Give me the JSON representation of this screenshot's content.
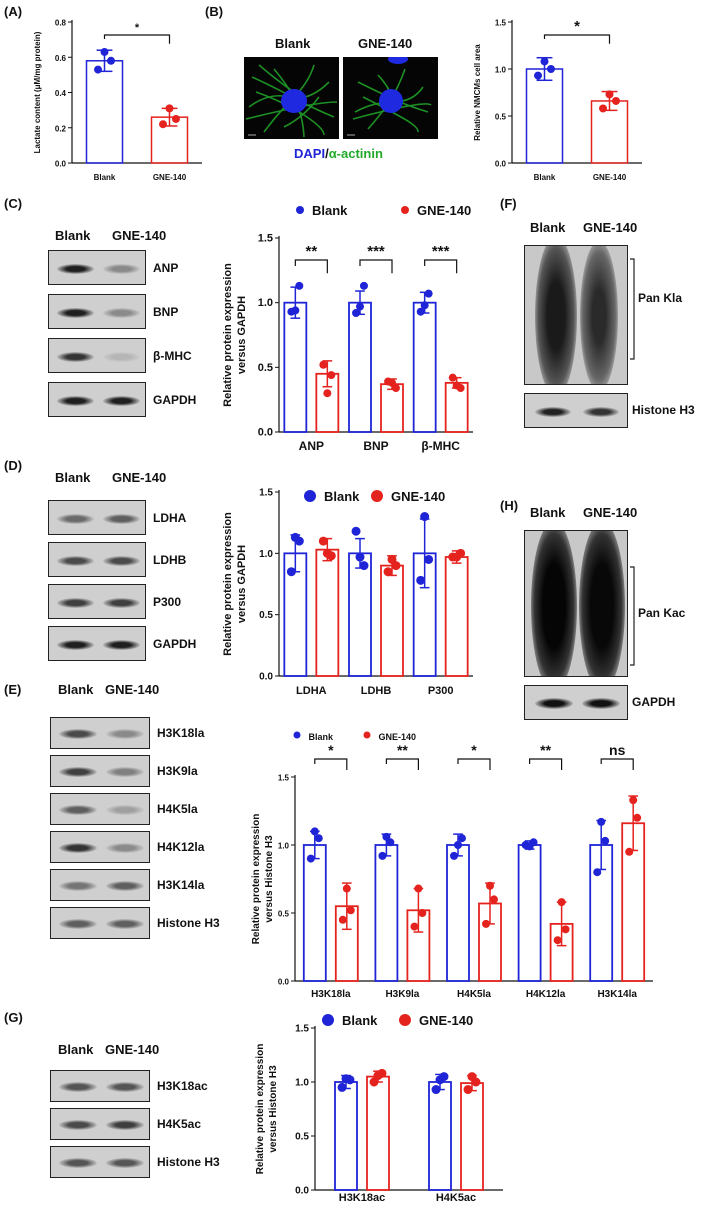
{
  "colors": {
    "blank": "#1f25d6",
    "gne": "#e5231e",
    "dapi": "#1f25d6",
    "actinin": "#22a92a"
  },
  "panelA": {
    "label": "(A)",
    "chart_data": {
      "type": "bar",
      "categories": [
        "Blank",
        "GNE-140"
      ],
      "values": [
        0.58,
        0.26
      ],
      "points": [
        [
          0.53,
          0.58,
          0.63
        ],
        [
          0.22,
          0.25,
          0.31
        ]
      ],
      "errors": [
        0.06,
        0.05
      ],
      "ylabel": "Lactate content (μM/mg protein)",
      "ylim": [
        0,
        0.8
      ],
      "yticks": [
        "0.0",
        "0.2",
        "0.4",
        "0.6",
        "0.8"
      ],
      "significance": "*"
    }
  },
  "panelB": {
    "label": "(B)",
    "img_labels": [
      "Blank",
      "GNE-140"
    ],
    "stain_dapi": "DAPI",
    "stain_sep": "/",
    "stain_actinin": "α-actinin",
    "chart_data": {
      "type": "bar",
      "categories": [
        "Blank",
        "GNE-140"
      ],
      "values": [
        1.0,
        0.66
      ],
      "points": [
        [
          0.93,
          1.0,
          1.08
        ],
        [
          0.58,
          0.66,
          0.73
        ]
      ],
      "errors": [
        0.12,
        0.1
      ],
      "ylabel": "Relative NMCMs cell area",
      "ylim": [
        0,
        1.5
      ],
      "yticks": [
        "0.0",
        "0.5",
        "1.0",
        "1.5"
      ],
      "significance": "*"
    }
  },
  "panelC": {
    "label": "(C)",
    "lanes": [
      "Blank",
      "GNE-140"
    ],
    "blots": [
      "ANP",
      "BNP",
      "β-MHC",
      "GAPDH"
    ],
    "chart_data": {
      "type": "bar",
      "legend": [
        "Blank",
        "GNE-140"
      ],
      "categories": [
        "ANP",
        "BNP",
        "β-MHC"
      ],
      "series": [
        {
          "name": "Blank",
          "values": [
            1.0,
            1.0,
            1.0
          ],
          "errors": [
            0.12,
            0.09,
            0.08
          ],
          "points": [
            [
              0.93,
              1.13,
              0.94
            ],
            [
              0.92,
              1.13,
              0.97
            ],
            [
              0.93,
              1.07,
              0.98
            ]
          ]
        },
        {
          "name": "GNE-140",
          "values": [
            0.45,
            0.37,
            0.38
          ],
          "errors": [
            0.1,
            0.04,
            0.04
          ],
          "points": [
            [
              0.52,
              0.44,
              0.3
            ],
            [
              0.39,
              0.34,
              0.38
            ],
            [
              0.42,
              0.34,
              0.36
            ]
          ]
        }
      ],
      "ylabel": "Relative protein expression versus GAPDH",
      "ylim": [
        0,
        1.5
      ],
      "yticks": [
        "0.0",
        "0.5",
        "1.0",
        "1.5"
      ],
      "significance": [
        "**",
        "***",
        "***"
      ]
    }
  },
  "panelD": {
    "label": "(D)",
    "lanes": [
      "Blank",
      "GNE-140"
    ],
    "blots": [
      "LDHA",
      "LDHB",
      "P300",
      "GAPDH"
    ],
    "chart_data": {
      "type": "bar",
      "legend": [
        "Blank",
        "GNE-140"
      ],
      "categories": [
        "LDHA",
        "LDHB",
        "P300"
      ],
      "series": [
        {
          "name": "Blank",
          "values": [
            1.0,
            1.0,
            1.0
          ],
          "errors": [
            0.15,
            0.12,
            0.28
          ],
          "points": [
            [
              0.85,
              1.1,
              1.13
            ],
            [
              1.18,
              0.9,
              0.97
            ],
            [
              0.78,
              0.95,
              1.3
            ]
          ]
        },
        {
          "name": "GNE-140",
          "values": [
            1.03,
            0.9,
            0.97
          ],
          "errors": [
            0.09,
            0.08,
            0.05
          ],
          "points": [
            [
              1.1,
              0.98,
              1.0
            ],
            [
              0.85,
              0.9,
              0.95
            ],
            [
              0.97,
              1.0,
              0.97
            ]
          ]
        }
      ],
      "ylabel": "Relative protein expression versus GAPDH",
      "ylim": [
        0,
        1.5
      ],
      "yticks": [
        "0.0",
        "0.5",
        "1.0",
        "1.5"
      ]
    }
  },
  "panelE": {
    "label": "(E)",
    "lanes": [
      "Blank",
      "GNE-140"
    ],
    "blots": [
      "H3K18la",
      "H3K9la",
      "H4K5la",
      "H4K12la",
      "H3K14la",
      "Histone H3"
    ],
    "chart_data": {
      "type": "bar",
      "legend": [
        "Blank",
        "GNE-140"
      ],
      "categories": [
        "H3K18la",
        "H3K9la",
        "H4K5la",
        "H4K12la",
        "H3K14la"
      ],
      "series": [
        {
          "name": "Blank",
          "values": [
            1.0,
            1.0,
            1.0,
            1.0,
            1.0
          ],
          "errors": [
            0.1,
            0.08,
            0.08,
            0.03,
            0.18
          ],
          "points": [
            [
              0.9,
              1.05,
              1.1
            ],
            [
              0.92,
              1.02,
              1.06
            ],
            [
              0.92,
              1.05,
              1.0
            ],
            [
              1.0,
              1.02,
              0.99
            ],
            [
              0.8,
              1.03,
              1.17
            ]
          ]
        },
        {
          "name": "GNE-140",
          "values": [
            0.55,
            0.52,
            0.57,
            0.42,
            1.16
          ],
          "errors": [
            0.17,
            0.16,
            0.15,
            0.16,
            0.2
          ],
          "points": [
            [
              0.45,
              0.52,
              0.68
            ],
            [
              0.4,
              0.5,
              0.68
            ],
            [
              0.42,
              0.6,
              0.7
            ],
            [
              0.3,
              0.38,
              0.58
            ],
            [
              0.95,
              1.2,
              1.33
            ]
          ]
        }
      ],
      "ylabel": "Relative protein expression versus Histone H3",
      "ylim": [
        0,
        1.5
      ],
      "yticks": [
        "0.0",
        "0.5",
        "1.0",
        "1.5"
      ],
      "significance": [
        "*",
        "**",
        "*",
        "**",
        "ns"
      ]
    }
  },
  "panelF": {
    "label": "(F)",
    "lanes": [
      "Blank",
      "GNE-140"
    ],
    "bracket_label": "Pan Kla",
    "loading": "Histone H3"
  },
  "panelG": {
    "label": "(G)",
    "lanes": [
      "Blank",
      "GNE-140"
    ],
    "blots": [
      "H3K18ac",
      "H4K5ac",
      "Histone H3"
    ],
    "chart_data": {
      "type": "bar",
      "legend": [
        "Blank",
        "GNE-140"
      ],
      "categories": [
        "H3K18ac",
        "H4K5ac"
      ],
      "series": [
        {
          "name": "Blank",
          "values": [
            1.0,
            1.0
          ],
          "errors": [
            0.06,
            0.07
          ],
          "points": [
            [
              0.95,
              1.02,
              1.03
            ],
            [
              0.93,
              1.05,
              1.02
            ]
          ]
        },
        {
          "name": "GNE-140",
          "values": [
            1.05,
            0.99
          ],
          "errors": [
            0.05,
            0.07
          ],
          "points": [
            [
              1.0,
              1.08,
              1.06
            ],
            [
              0.93,
              1.0,
              1.05
            ]
          ]
        }
      ],
      "ylabel": "Relative protein expression versus Histone H3",
      "ylim": [
        0,
        1.5
      ],
      "yticks": [
        "0.0",
        "0.5",
        "1.0",
        "1.5"
      ]
    }
  },
  "panelH": {
    "label": "(H)",
    "lanes": [
      "Blank",
      "GNE-140"
    ],
    "bracket_label": "Pan Kac",
    "loading": "GAPDH"
  }
}
